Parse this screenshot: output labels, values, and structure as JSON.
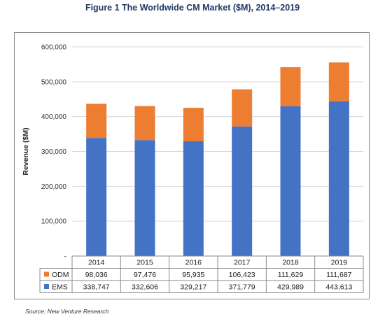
{
  "title": "Figure 1   The Worldwide CM Market ($M), 2014–2019",
  "source": "Source: New Venture Research",
  "colors": {
    "odm": "#ED7D31",
    "ems": "#4472C4"
  },
  "chart_data": {
    "type": "bar",
    "stacked": true,
    "title": "Figure 1   The Worldwide CM Market ($M), 2014–2019",
    "xlabel": "",
    "ylabel": "Revenue ($M)",
    "ylim": [
      0,
      600000
    ],
    "yticks": [
      0,
      100000,
      200000,
      300000,
      400000,
      500000,
      600000
    ],
    "ytick_labels": [
      "-",
      "100,000",
      "200,000",
      "300,000",
      "400,000",
      "500,000",
      "600,000"
    ],
    "grid": true,
    "legend": "data-table",
    "categories": [
      "2014",
      "2015",
      "2016",
      "2017",
      "2018",
      "2019"
    ],
    "series": [
      {
        "name": "EMS",
        "values": [
          338747,
          332606,
          329217,
          371779,
          429989,
          443613
        ],
        "labels": [
          "338,747",
          "332,606",
          "329,217",
          "371,779",
          "429,989",
          "443,613"
        ]
      },
      {
        "name": "ODM",
        "values": [
          98036,
          97476,
          95935,
          106423,
          111629,
          111687
        ],
        "labels": [
          "98,036",
          "97,476",
          "95,935",
          "106,423",
          "111,629",
          "111,687"
        ]
      }
    ]
  }
}
